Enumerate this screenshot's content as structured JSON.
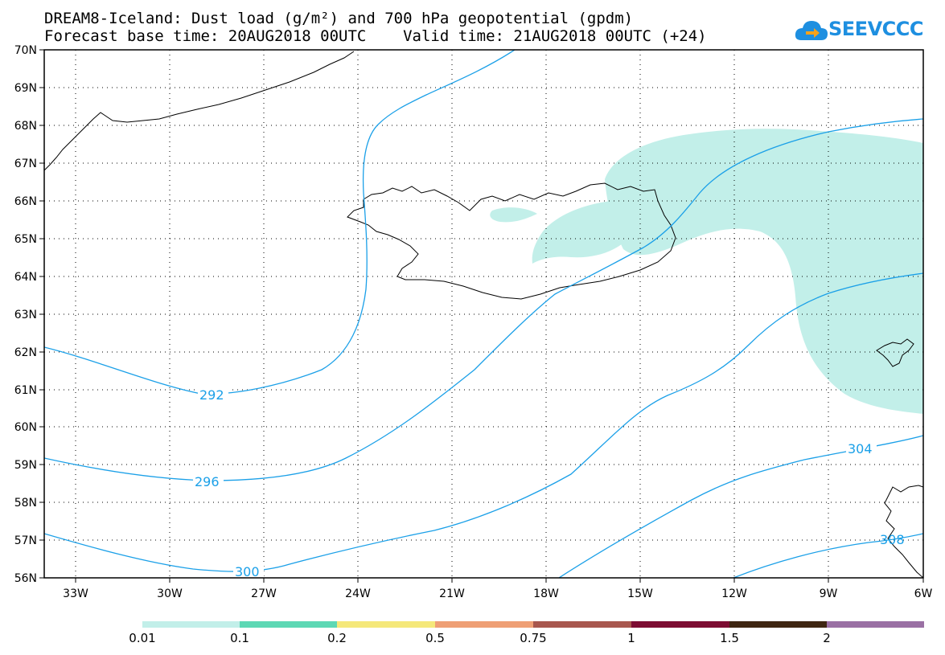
{
  "title": {
    "line1": "DREAM8-Iceland: Dust load (g/m²) and 700 hPa geopotential (gpdm)",
    "line2": "Forecast base time: 20AUG2018 00UTC    Valid time: 21AUG2018 00UTC (+24)"
  },
  "logo": {
    "text": "SEEVCCC",
    "color": "#1e8fe0",
    "icon": "cloud-arrow-icon"
  },
  "map": {
    "lat_labels": [
      "70N",
      "69N",
      "68N",
      "67N",
      "66N",
      "65N",
      "64N",
      "63N",
      "62N",
      "61N",
      "60N",
      "59N",
      "58N",
      "57N",
      "56N"
    ],
    "lon_labels": [
      "33W",
      "30W",
      "27W",
      "24W",
      "21W",
      "18W",
      "15W",
      "12W",
      "9W",
      "6W"
    ],
    "lon_range": [
      -34,
      -6
    ],
    "lat_range": [
      56,
      70
    ],
    "grid": "dotted",
    "dust_color": "#c2efe9",
    "contour_color": "#1ba0e8",
    "contour_labels": [
      "292",
      "296",
      "300",
      "304",
      "308"
    ]
  },
  "legend": {
    "labels": [
      "0.01",
      "0.1",
      "0.2",
      "0.5",
      "0.75",
      "1",
      "1.5",
      "2"
    ],
    "colors": [
      "#c2efe9",
      "#5dd8b4",
      "#f5e87a",
      "#ef9f75",
      "#a8574e",
      "#7d0d33",
      "#3f2612",
      "#9a70a4"
    ]
  }
}
